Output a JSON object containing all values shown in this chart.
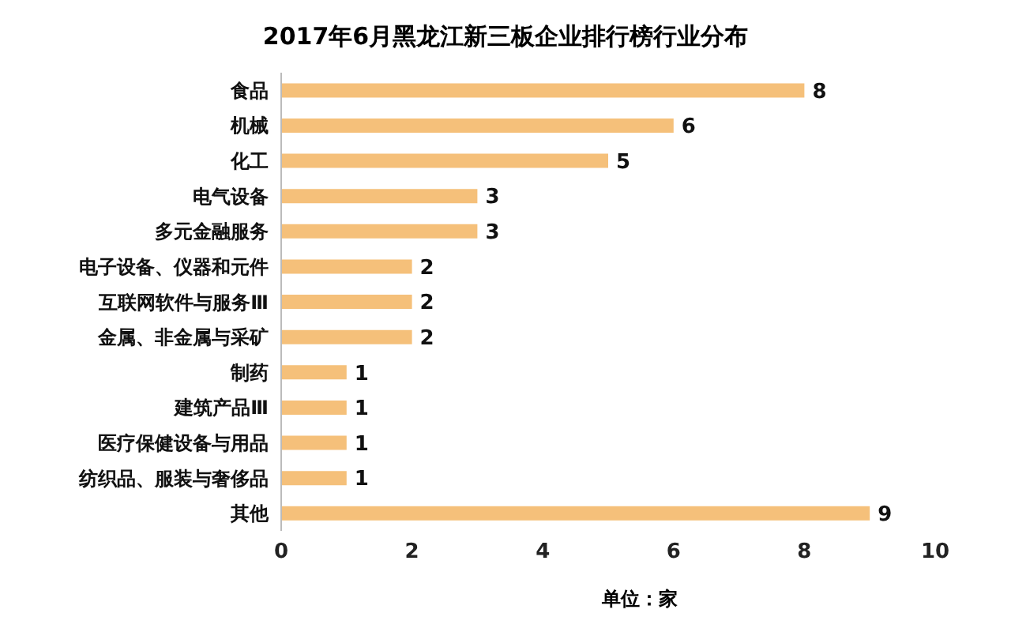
{
  "chart_data": {
    "type": "bar",
    "orientation": "horizontal",
    "title": "2017年6月黑龙江新三板企业排行榜行业分布",
    "xlabel": "单位：家",
    "categories": [
      "食品",
      "机械",
      "化工",
      "电气设备",
      "多元金融服务",
      "电子设备、仪器和元件",
      "互联网软件与服务Ⅲ",
      "金属、非金属与采矿",
      "制药",
      "建筑产品Ⅲ",
      "医疗保健设备与用品",
      "纺织品、服装与奢侈品",
      "其他"
    ],
    "values": [
      8,
      6,
      5,
      3,
      3,
      2,
      2,
      2,
      1,
      1,
      1,
      1,
      9
    ],
    "color": "#f5c07a",
    "xlim": [
      0,
      10
    ],
    "xticks": [
      0,
      2,
      4,
      6,
      8,
      10
    ],
    "grid": false,
    "data_labels": true,
    "legend": false
  }
}
